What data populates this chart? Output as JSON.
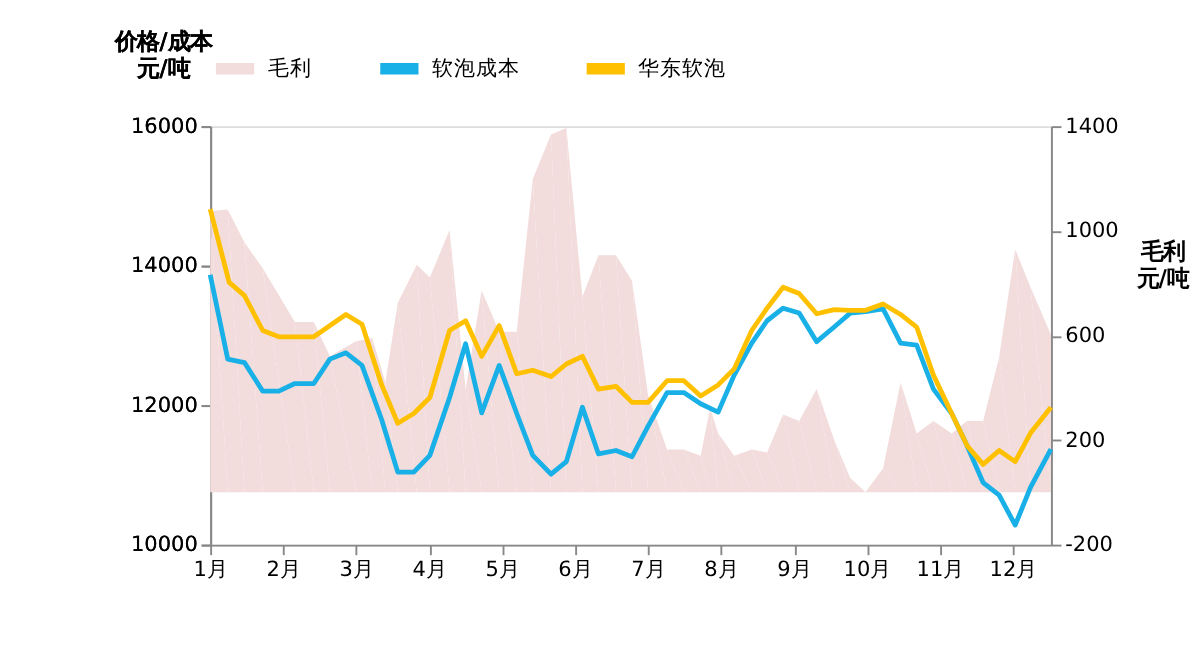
{
  "chart_data": {
    "type": "line",
    "ylabel": "价格/成本元/吨",
    "y2label": "毛利元/吨",
    "legend": "top",
    "grid": false,
    "xlim": [
      1,
      12.52
    ],
    "xticks": [
      {
        "value": 1,
        "label": "1月"
      },
      {
        "value": 2,
        "label": "2月"
      },
      {
        "value": 3,
        "label": "3月"
      },
      {
        "value": 4,
        "label": "4月"
      },
      {
        "value": 5,
        "label": "5月"
      },
      {
        "value": 6,
        "label": "6月"
      },
      {
        "value": 7,
        "label": "7月"
      },
      {
        "value": 8,
        "label": "8月"
      },
      {
        "value": 9,
        "label": "9月"
      },
      {
        "value": 10,
        "label": "10月"
      },
      {
        "value": 11,
        "label": "11月"
      },
      {
        "value": 12,
        "label": "12月"
      }
    ],
    "ylim": [
      10000,
      16000
    ],
    "yticks": [
      10000,
      12000,
      14000,
      16000
    ],
    "y2lim": [
      -200,
      1400
    ],
    "y2ticks": [
      -200,
      200,
      600,
      1000,
      1400
    ],
    "series": [
      {
        "name": "毛利",
        "type": "area",
        "axis": "y2",
        "color": "#f2dcdc",
        "x": [
          1.0,
          1.24,
          1.47,
          1.72,
          2.16,
          2.42,
          2.64,
          3.0,
          3.22,
          3.4,
          3.57,
          3.83,
          4.01,
          4.28,
          4.5,
          4.72,
          4.96,
          5.2,
          5.42,
          5.67,
          5.88,
          6.1,
          6.32,
          6.56,
          6.78,
          7.0,
          7.26,
          7.49,
          7.72,
          7.85,
          7.96,
          8.18,
          8.42,
          8.63,
          8.85,
          9.07,
          9.31,
          9.55,
          9.77,
          9.98,
          10.22,
          10.46,
          10.68,
          10.91,
          11.16,
          11.37,
          11.59,
          11.81,
          12.03,
          12.24,
          12.52
        ],
        "values": [
          1076,
          1081,
          955,
          857,
          651,
          651,
          520,
          578,
          590,
          420,
          724,
          870,
          821,
          1003,
          395,
          772,
          614,
          614,
          1198,
          1368,
          1393,
          748,
          906,
          906,
          809,
          371,
          164,
          164,
          140,
          322,
          225,
          140,
          164,
          152,
          298,
          273,
          395,
          200,
          55,
          1,
          92,
          420,
          225,
          273,
          225,
          273,
          273,
          517,
          930,
          784,
          602
        ]
      },
      {
        "name": "软泡成本",
        "axis": "y",
        "color": "#18b0e6",
        "x": [
          1.0,
          1.24,
          1.47,
          1.72,
          1.94,
          2.16,
          2.42,
          2.64,
          2.86,
          3.08,
          3.35,
          3.57,
          3.79,
          4.01,
          4.28,
          4.5,
          4.72,
          4.96,
          5.2,
          5.42,
          5.67,
          5.88,
          6.1,
          6.32,
          6.56,
          6.78,
          7.0,
          7.26,
          7.49,
          7.72,
          7.96,
          8.18,
          8.42,
          8.63,
          8.85,
          9.07,
          9.31,
          9.55,
          9.77,
          9.98,
          10.22,
          10.46,
          10.68,
          10.91,
          11.16,
          11.37,
          11.59,
          11.81,
          12.03,
          12.24,
          12.52
        ],
        "values": [
          13870,
          12660,
          12610,
          12200,
          12200,
          12310,
          12310,
          12660,
          12750,
          12570,
          11790,
          11040,
          11040,
          11280,
          12110,
          12880,
          11890,
          12570,
          11880,
          11280,
          11010,
          11190,
          11970,
          11300,
          11350,
          11260,
          11700,
          12180,
          12180,
          12020,
          11900,
          12430,
          12890,
          13210,
          13390,
          13320,
          12910,
          13120,
          13320,
          13340,
          13380,
          12890,
          12860,
          12230,
          11880,
          11420,
          10890,
          10710,
          10280,
          10820,
          11370
        ]
      },
      {
        "name": "华东软泡",
        "axis": "y",
        "color": "#ffc000",
        "x": [
          1.0,
          1.26,
          1.47,
          1.72,
          1.94,
          2.42,
          2.86,
          3.08,
          3.35,
          3.57,
          3.79,
          4.01,
          4.28,
          4.5,
          4.72,
          4.96,
          5.2,
          5.42,
          5.67,
          5.88,
          6.1,
          6.32,
          6.56,
          6.78,
          7.0,
          7.26,
          7.49,
          7.72,
          7.96,
          8.18,
          8.42,
          8.63,
          8.85,
          9.07,
          9.31,
          9.55,
          9.77,
          9.98,
          10.22,
          10.46,
          10.68,
          10.91,
          11.16,
          11.37,
          11.59,
          11.81,
          12.03,
          12.24,
          12.52
        ],
        "values": [
          14810,
          13760,
          13570,
          13070,
          12980,
          12980,
          13300,
          13160,
          12290,
          11740,
          11880,
          12110,
          13070,
          13210,
          12700,
          13140,
          12450,
          12500,
          12410,
          12590,
          12700,
          12230,
          12270,
          12040,
          12040,
          12350,
          12350,
          12130,
          12290,
          12520,
          13070,
          13390,
          13690,
          13600,
          13310,
          13370,
          13360,
          13360,
          13450,
          13300,
          13120,
          12430,
          11880,
          11420,
          11150,
          11350,
          11190,
          11600,
          11970
        ]
      }
    ]
  }
}
